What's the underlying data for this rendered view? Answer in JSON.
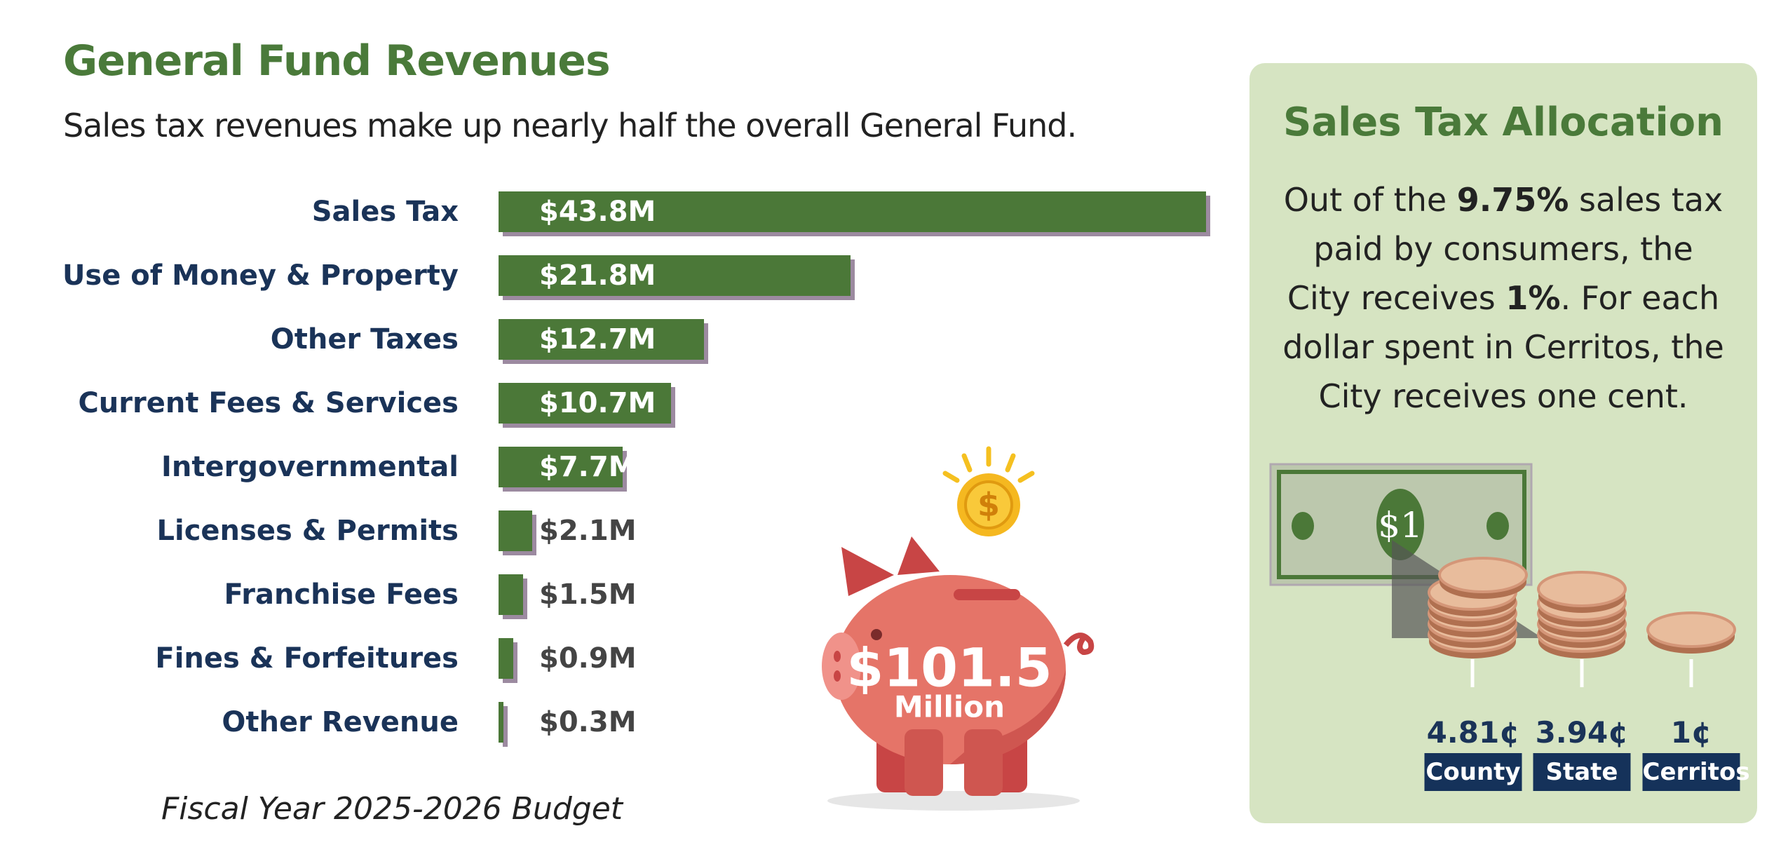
{
  "title": "General Fund Revenues",
  "subtitle": "Sales tax revenues make up nearly half the overall General Fund.",
  "footer": "Fiscal Year 2025-2026 Budget",
  "colors": {
    "bar": "#4b7838",
    "bar_shadow": "#9c8aa0",
    "title": "#4a7a3a",
    "label": "#1a3358",
    "panel": "#d6e4c2",
    "pig": "#e57468"
  },
  "chart_data": {
    "type": "bar",
    "orientation": "horizontal",
    "categories": [
      "Sales Tax",
      "Use of Money & Property",
      "Other Taxes",
      "Current Fees & Services",
      "Intergovernmental",
      "Licenses & Permits",
      "Franchise Fees",
      "Fines & Forfeitures",
      "Other Revenue"
    ],
    "values": [
      43.8,
      21.8,
      12.7,
      10.7,
      7.7,
      2.1,
      1.5,
      0.9,
      0.3
    ],
    "labels": [
      "$43.8M",
      "$21.8M",
      "$12.7M",
      "$10.7M",
      "$7.7M",
      "$2.1M",
      "$1.5M",
      "$0.9M",
      "$0.3M"
    ],
    "unit": "$M",
    "grid": false
  },
  "total": {
    "amount": "$101.5",
    "unit": "Million"
  },
  "panel": {
    "title": "Sales Tax Allocation",
    "text_parts": [
      "Out of the ",
      "9.75%",
      " sales tax paid by consumers, the City receives ",
      "1%",
      ". For each dollar spent in Cerritos, the City receives one cent."
    ],
    "bill_label": "$1",
    "allocations": [
      {
        "value": "4.81¢",
        "label": "County"
      },
      {
        "value": "3.94¢",
        "label": "State"
      },
      {
        "value": "1¢",
        "label": "Cerritos"
      }
    ]
  }
}
